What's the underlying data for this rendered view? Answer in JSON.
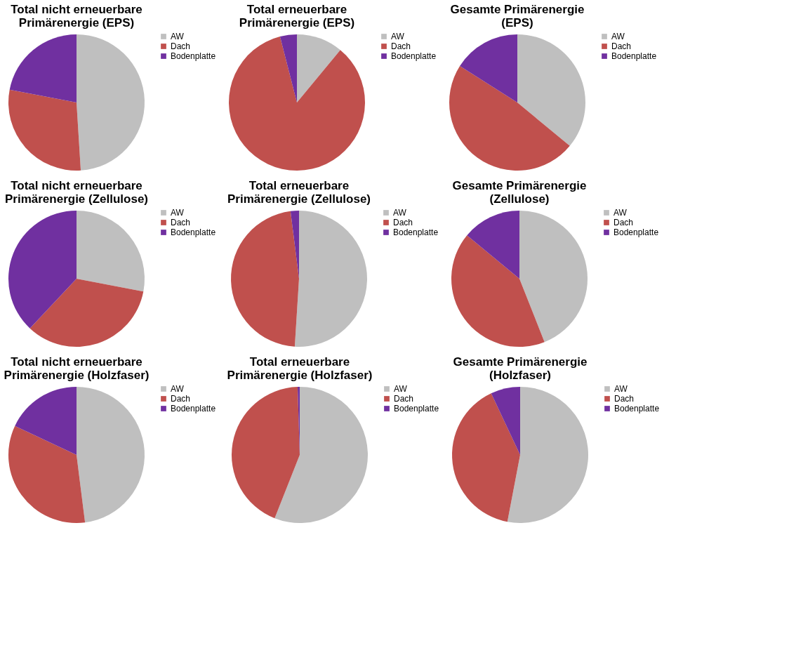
{
  "chart_data": [
    {
      "type": "pie",
      "title": "Total nicht erneuerbare Primärenergie (EPS)",
      "categories": [
        "AW",
        "Dach",
        "Bodenplatte"
      ],
      "values": [
        49,
        29,
        22
      ],
      "colors": [
        "#bfbfbf",
        "#c0504d",
        "#7030a0"
      ],
      "legend": "right"
    },
    {
      "type": "pie",
      "title": "Total erneuerbare Primärenergie (EPS)",
      "categories": [
        "AW",
        "Dach",
        "Bodenplatte"
      ],
      "values": [
        11,
        85,
        4
      ],
      "colors": [
        "#bfbfbf",
        "#c0504d",
        "#7030a0"
      ],
      "legend": "right"
    },
    {
      "type": "pie",
      "title": "Gesamte Primärenergie (EPS)",
      "categories": [
        "AW",
        "Dach",
        "Bodenplatte"
      ],
      "values": [
        36,
        48,
        16
      ],
      "colors": [
        "#bfbfbf",
        "#c0504d",
        "#7030a0"
      ],
      "legend": "right"
    },
    {
      "type": "pie",
      "title": "Total nicht erneuerbare Primärenergie (Zellulose)",
      "categories": [
        "AW",
        "Dach",
        "Bodenplatte"
      ],
      "values": [
        28,
        34,
        38
      ],
      "colors": [
        "#bfbfbf",
        "#c0504d",
        "#7030a0"
      ],
      "legend": "right"
    },
    {
      "type": "pie",
      "title": "Total erneuerbare Primärenergie (Zellulose)",
      "categories": [
        "AW",
        "Dach",
        "Bodenplatte"
      ],
      "values": [
        51,
        47,
        2
      ],
      "colors": [
        "#bfbfbf",
        "#c0504d",
        "#7030a0"
      ],
      "legend": "right"
    },
    {
      "type": "pie",
      "title": "Gesamte Primärenergie (Zellulose)",
      "categories": [
        "AW",
        "Dach",
        "Bodenplatte"
      ],
      "values": [
        44,
        42,
        14
      ],
      "colors": [
        "#bfbfbf",
        "#c0504d",
        "#7030a0"
      ],
      "legend": "right"
    },
    {
      "type": "pie",
      "title": "Total nicht erneuerbare Primärenergie (Holzfaser)",
      "categories": [
        "AW",
        "Dach",
        "Bodenplatte"
      ],
      "values": [
        48,
        34,
        18
      ],
      "colors": [
        "#bfbfbf",
        "#c0504d",
        "#7030a0"
      ],
      "legend": "right"
    },
    {
      "type": "pie",
      "title": "Total erneuerbare Primärenergie (Holzfaser)",
      "categories": [
        "AW",
        "Dach",
        "Bodenplatte"
      ],
      "values": [
        56,
        43.5,
        0.5
      ],
      "colors": [
        "#bfbfbf",
        "#c0504d",
        "#7030a0"
      ],
      "legend": "right"
    },
    {
      "type": "pie",
      "title": "Gesamte Primärenergie (Holzfaser)",
      "categories": [
        "AW",
        "Dach",
        "Bodenplatte"
      ],
      "values": [
        53,
        40,
        7
      ],
      "colors": [
        "#bfbfbf",
        "#c0504d",
        "#7030a0"
      ],
      "legend": "right"
    }
  ]
}
